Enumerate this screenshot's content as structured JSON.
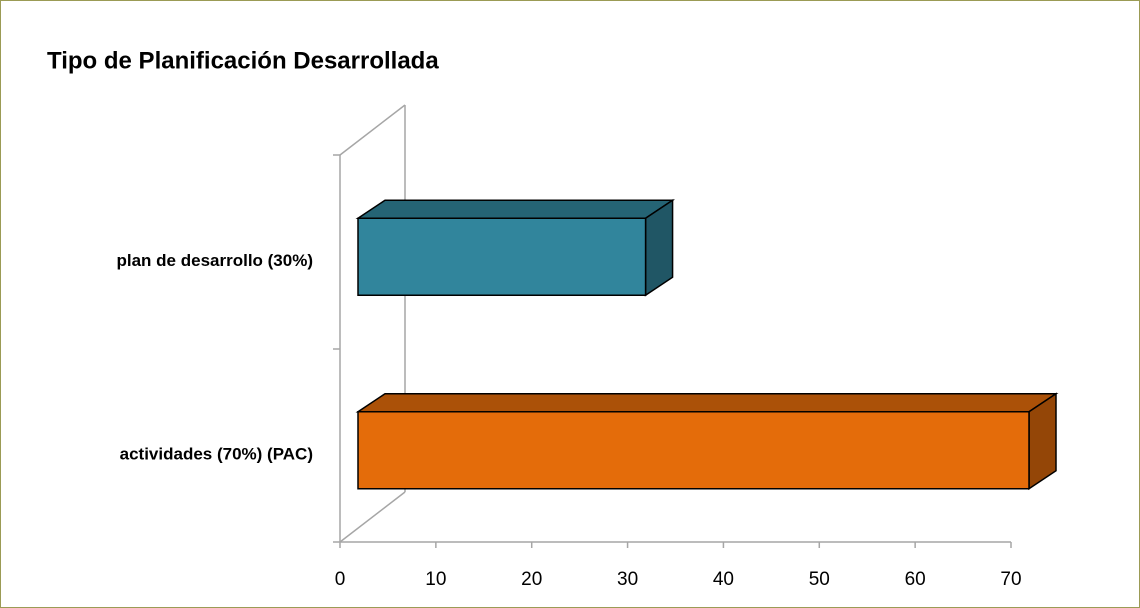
{
  "chart_data": {
    "type": "bar",
    "orientation": "horizontal",
    "three_d": true,
    "title": "Tipo de Planificación Desarrollada",
    "categories": [
      "plan de desarrollo (30%)",
      "actividades (70%) (PAC)"
    ],
    "values": [
      30,
      70
    ],
    "colors": [
      "#31859c",
      "#e46c0a"
    ],
    "xlim": [
      0,
      70
    ],
    "xticks": [
      0,
      10,
      20,
      30,
      40,
      50,
      60,
      70
    ]
  }
}
